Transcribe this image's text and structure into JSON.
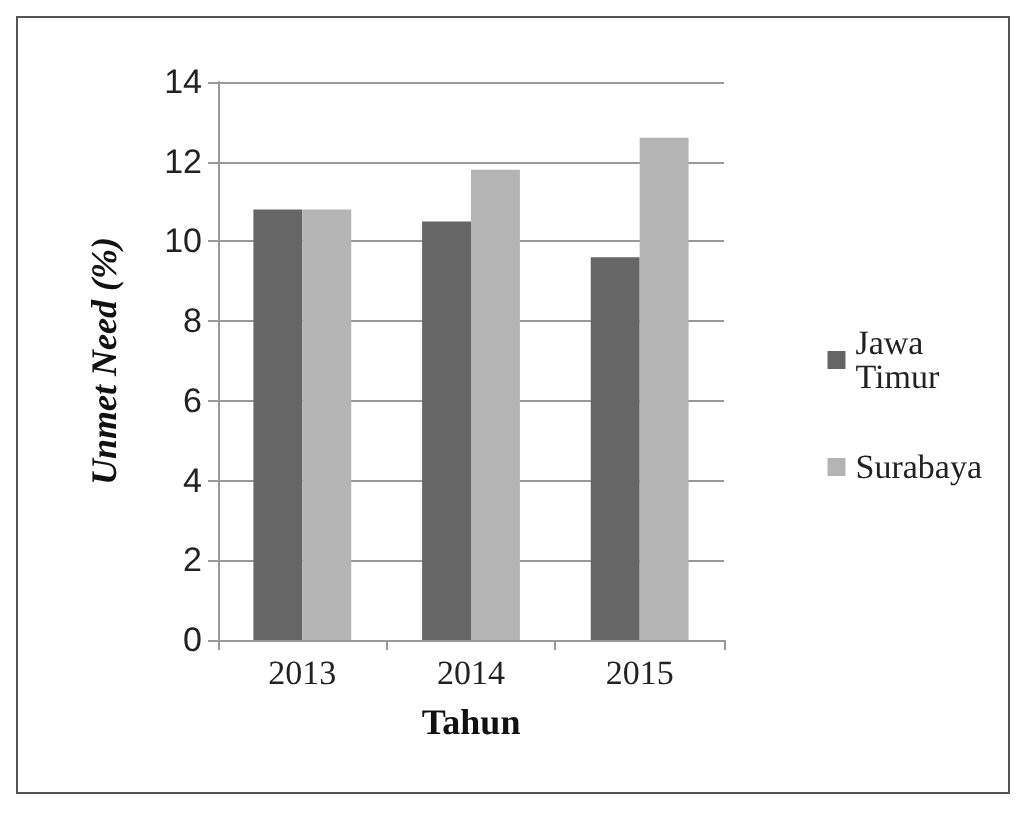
{
  "chart_data": {
    "type": "bar",
    "xlabel": "Tahun",
    "ylabel": "Unmet Need (%)",
    "categories": [
      "2013",
      "2014",
      "2015"
    ],
    "series": [
      {
        "name": "Jawa Timur",
        "color": "#666666",
        "values": [
          10.8,
          10.5,
          9.6
        ]
      },
      {
        "name": "Surabaya",
        "color": "#b4b4b4",
        "values": [
          10.8,
          11.8,
          12.6
        ]
      }
    ],
    "ylim": [
      0,
      14
    ],
    "yticks": [
      0,
      2,
      4,
      6,
      8,
      10,
      12,
      14
    ],
    "grid": "y",
    "legend": "right"
  }
}
